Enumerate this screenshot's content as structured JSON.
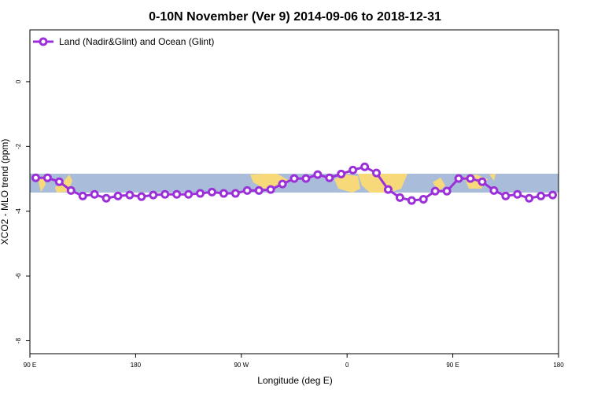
{
  "chart_data": {
    "type": "line",
    "title": "0-10N November (Ver 9)   2014-09-06 to 2018-12-31",
    "x_label": "Longitude (deg E)",
    "y_label": "XCO2 - MLO trend (ppm)",
    "xlim": [
      90,
      540
    ],
    "ylim": [
      -8.4,
      1.6
    ],
    "xticks": [
      {
        "value": 90,
        "label": "90 E"
      },
      {
        "value": 180,
        "label": "180"
      },
      {
        "value": 270,
        "label": "90 W"
      },
      {
        "value": 360,
        "label": "0"
      },
      {
        "value": 450,
        "label": "90 E"
      },
      {
        "value": 540,
        "label": "180"
      }
    ],
    "yticks": [
      0,
      -2,
      -4,
      -6,
      -8
    ],
    "legend_position": "top-left",
    "x": [
      95,
      105,
      115,
      125,
      135,
      145,
      155,
      165,
      175,
      185,
      195,
      205,
      215,
      225,
      235,
      245,
      255,
      265,
      275,
      285,
      295,
      305,
      315,
      325,
      335,
      345,
      355,
      365,
      375,
      385,
      395,
      405,
      415,
      425,
      435,
      445,
      455,
      465,
      475,
      485,
      495,
      505,
      515,
      525,
      535
    ],
    "series": [
      {
        "name": "Land (Nadir&Glint) and Ocean (Glint)",
        "color": "#9b30d9",
        "values": [
          -2.97,
          -2.97,
          -3.09,
          -3.36,
          -3.53,
          -3.48,
          -3.6,
          -3.53,
          -3.5,
          -3.55,
          -3.5,
          -3.48,
          -3.48,
          -3.48,
          -3.45,
          -3.41,
          -3.45,
          -3.45,
          -3.36,
          -3.36,
          -3.33,
          -3.16,
          -2.99,
          -2.99,
          -2.87,
          -2.97,
          -2.85,
          -2.73,
          -2.63,
          -2.82,
          -3.33,
          -3.58,
          -3.67,
          -3.63,
          -3.38,
          -3.38,
          -2.99,
          -2.99,
          -3.09,
          -3.36,
          -3.53,
          -3.48,
          -3.6,
          -3.53,
          -3.5
        ]
      }
    ]
  }
}
